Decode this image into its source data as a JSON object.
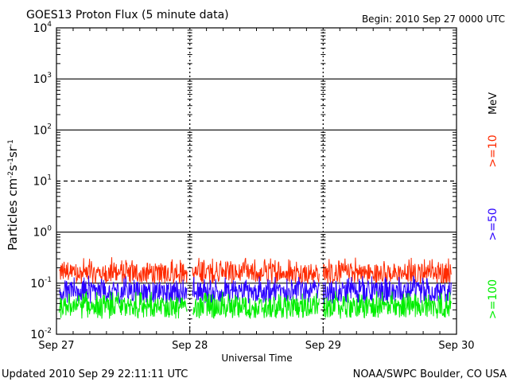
{
  "chart_data": {
    "type": "line",
    "title": "GOES13 Proton Flux (5 minute data)",
    "begin_label": "Begin: 2010 Sep 27 0000 UTC",
    "xlabel": "Universal Time",
    "ylabel_main": "Particles cm",
    "ylabel_sup1": "-2",
    "ylabel_mid1": "s",
    "ylabel_sup2": "-1",
    "ylabel_mid2": "sr",
    "ylabel_sup3": "-1",
    "y_scale": "log",
    "ylim": [
      0.01,
      10000
    ],
    "y_ticks": [
      {
        "base": "10",
        "exp": "4"
      },
      {
        "base": "10",
        "exp": "3"
      },
      {
        "base": "10",
        "exp": "2"
      },
      {
        "base": "10",
        "exp": "1"
      },
      {
        "base": "10",
        "exp": "0"
      },
      {
        "base": "10",
        "exp": "-1"
      },
      {
        "base": "10",
        "exp": "-2"
      }
    ],
    "x_ticks": [
      "Sep 27",
      "Sep 28",
      "Sep 29",
      "Sep 30"
    ],
    "xlim_days": [
      0,
      3
    ],
    "energy_unit": "MeV",
    "series": [
      {
        "name": ">=10",
        "color": "#ff2a00",
        "min": 0.1,
        "max": 0.33,
        "typical": 0.16
      },
      {
        "name": ">=50",
        "color": "#2a00ff",
        "min": 0.04,
        "max": 0.14,
        "typical": 0.07
      },
      {
        "name": ">=100",
        "color": "#00ee00",
        "min": 0.02,
        "max": 0.07,
        "typical": 0.035
      }
    ],
    "data_gaps_days": [
      [
        0.98,
        1.02
      ],
      [
        1.97,
        2.0
      ]
    ],
    "gridlines": "solid at 10^3, 10^2, 10^0, 10^-1; dashed at 10^1"
  },
  "footer": {
    "updated": "Updated 2010 Sep 29 22:11:11 UTC",
    "credit": "NOAA/SWPC Boulder, CO USA"
  }
}
